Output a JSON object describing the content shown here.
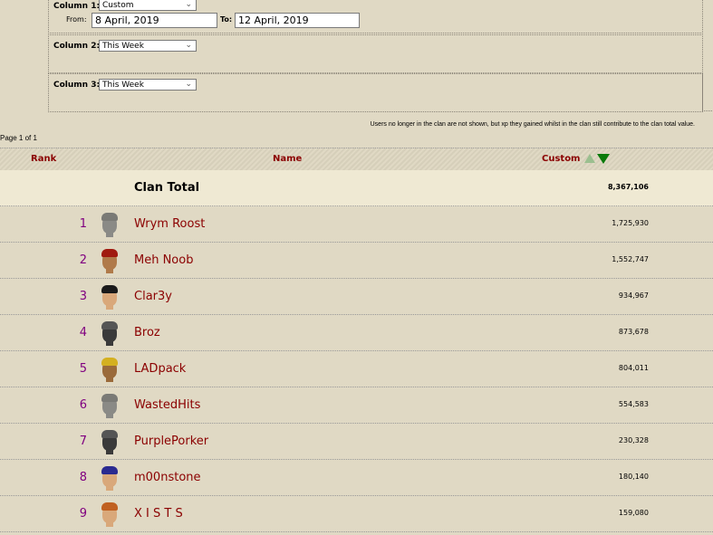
{
  "filters": {
    "column1": {
      "label": "Column 1:",
      "value": "Custom",
      "from_label": "From:",
      "from_value": "8 April, 2019",
      "to_label": "To:",
      "to_value": "12 April, 2019"
    },
    "column2": {
      "label": "Column 2:",
      "value": "This Week"
    },
    "column3": {
      "label": "Column 3:",
      "value": "This Week"
    }
  },
  "notice": "Users no longer in the clan are not shown, but xp they gained whilst in the clan still contribute to the clan total value.",
  "pagination": "Page 1 of 1",
  "table": {
    "headers": {
      "rank": "Rank",
      "name": "Name",
      "custom": "Custom"
    },
    "sort_colors": {
      "asc": "#9bbf8f",
      "desc": "#0a7a0a"
    },
    "total": {
      "label": "Clan Total",
      "value": "8,367,106"
    },
    "rows": [
      {
        "rank": "1",
        "name": "Wrym Roost",
        "xp": "1,725,930",
        "skin": "#8a8a86",
        "hair": "#7a7a76"
      },
      {
        "rank": "2",
        "name": "Meh Noob",
        "xp": "1,552,747",
        "skin": "#b07a4a",
        "hair": "#a01a10"
      },
      {
        "rank": "3",
        "name": "Clar3y",
        "xp": "934,967",
        "skin": "#d9a87a",
        "hair": "#1a1a1a"
      },
      {
        "rank": "4",
        "name": "Broz",
        "xp": "873,678",
        "skin": "#3a3a3a",
        "hair": "#555555"
      },
      {
        "rank": "5",
        "name": "LADpack",
        "xp": "804,011",
        "skin": "#9a6a3a",
        "hair": "#d4b020"
      },
      {
        "rank": "6",
        "name": "WastedHits",
        "xp": "554,583",
        "skin": "#8a8a86",
        "hair": "#7a7a76"
      },
      {
        "rank": "7",
        "name": "PurplePorker",
        "xp": "230,328",
        "skin": "#3a3a3a",
        "hair": "#555555"
      },
      {
        "rank": "8",
        "name": "m00nstone",
        "xp": "180,140",
        "skin": "#d9a87a",
        "hair": "#2a2a90"
      },
      {
        "rank": "9",
        "name": "X I S T S",
        "xp": "159,080",
        "skin": "#d9a87a",
        "hair": "#c06020"
      }
    ]
  }
}
